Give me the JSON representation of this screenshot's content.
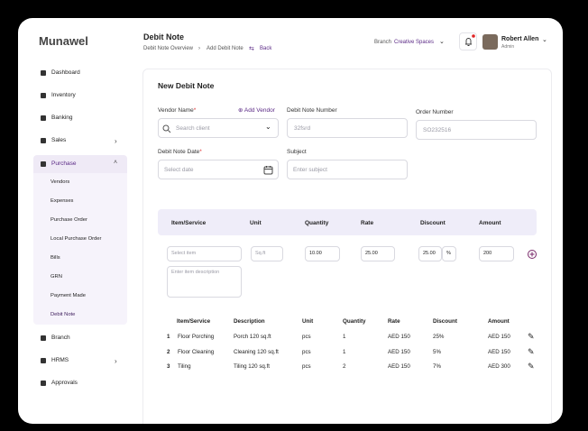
{
  "brand": {
    "name": "Munawel"
  },
  "sidebar": {
    "items": [
      "Dashboard",
      "Inventory",
      "Banking",
      "Sales",
      "Purchase"
    ],
    "purchase_submenu": [
      "Vendors",
      "Expenses",
      "Purchase Order",
      "Local Purchase Order",
      "Bills",
      "GRN",
      "Payment Made",
      "Debit Note"
    ],
    "items_after": [
      "Branch",
      "HRMS",
      "Approvals"
    ]
  },
  "header": {
    "title": "Debit Note",
    "breadcrumbs": [
      "Debit Note Overview",
      "Add Debit Note"
    ],
    "back": "Back",
    "branch_label": "Branch",
    "branch": "Creative Spaces",
    "user": {
      "name": "Robert Allen",
      "role": "Admin"
    }
  },
  "form": {
    "title": "New Debit Note",
    "required_mark": "*",
    "vendor_label": "Vendor Name",
    "add_vendor": "Add Vendor",
    "vendor_placeholder": "Search client",
    "debit_note_number_label": "Debit Note Number",
    "debit_note_number": "32fsrd",
    "order_number_label": "Order Number",
    "order_number": "SO232516",
    "date_label": "Debit Note Date",
    "date_placeholder": "Select date",
    "subject_label": "Subject",
    "subject_placeholder": "Enter subject"
  },
  "entry": {
    "columns": [
      "Item/Service",
      "Unit",
      "Quantity",
      "Rate",
      "Discount",
      "Amount"
    ],
    "item_placeholder": "Select item",
    "unit": "Sq.ft",
    "quantity": "10.00",
    "rate": "25.00",
    "discount": "25.00",
    "discount_type": "%",
    "amount": "200",
    "description_placeholder": "Enter item description"
  },
  "items_table": {
    "columns": [
      "Item/Service",
      "Description",
      "Unit",
      "Quantity",
      "Rate",
      "Discount",
      "Amount"
    ],
    "rows": [
      [
        "1",
        "Floor Porching",
        "Porch 120 sq.ft",
        "pcs",
        "1",
        "AED 150",
        "25%",
        "AED 150"
      ],
      [
        "2",
        "Floor Cleaning",
        "Cleaning 120 sq.ft",
        "pcs",
        "1",
        "AED 150",
        "5%",
        "AED 150"
      ],
      [
        "3",
        "Tiling",
        "Tiling 120 sq.ft",
        "pcs",
        "2",
        "AED 150",
        "7%",
        "AED 300"
      ]
    ]
  }
}
